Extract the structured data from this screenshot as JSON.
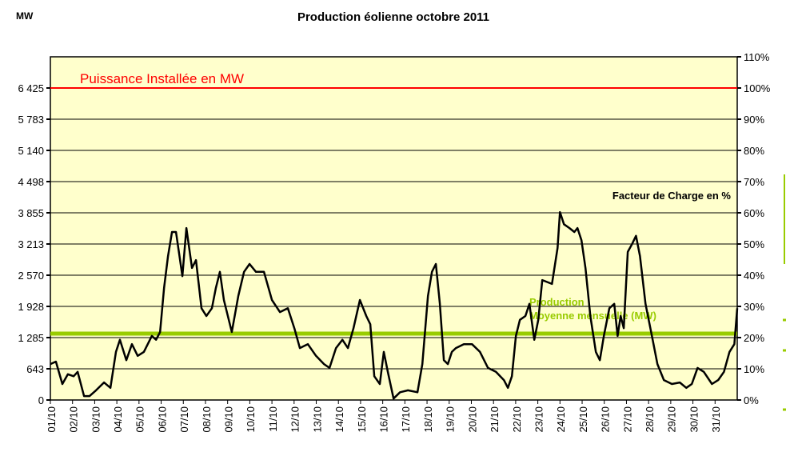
{
  "chart_data": {
    "type": "line",
    "title": "Production éolienne octobre 2011",
    "ylabel_left": "MW",
    "ylabel_right": "Facteur de Charge en %",
    "installed_label": "Puissance Installée en MW",
    "installed_mw": 6425,
    "mean_label_line1": "Production :",
    "mean_label_line2": "Moyenne mensuelle (MW)",
    "mean_mw": 1367,
    "left_ticks": [
      "0",
      "643",
      "1 285",
      "1 928",
      "2 570",
      "3 213",
      "3 855",
      "4 498",
      "5 140",
      "5 783",
      "6 425"
    ],
    "right_ticks": [
      "0%",
      "10%",
      "20%",
      "30%",
      "40%",
      "50%",
      "60%",
      "70%",
      "80%",
      "90%",
      "100%",
      "110%"
    ],
    "ylim_pct": [
      0,
      110
    ],
    "x_labels": [
      "01/10",
      "02/10",
      "03/10",
      "04/10",
      "05/10",
      "06/10",
      "07/10",
      "08/10",
      "09/10",
      "10/10",
      "11/10",
      "12/10",
      "13/10",
      "14/10",
      "15/10",
      "16/10",
      "17/10",
      "18/10",
      "19/10",
      "20/10",
      "21/10",
      "22/10",
      "23/10",
      "24/10",
      "25/10",
      "26/10",
      "27/10",
      "28/10",
      "29/10",
      "30/10",
      "31/10"
    ],
    "series": [
      {
        "name": "Production (MW)",
        "x_days": [
          0,
          0.25,
          0.54,
          0.79,
          1.05,
          1.23,
          1.52,
          1.77,
          2.06,
          2.42,
          2.71,
          2.96,
          3.14,
          3.43,
          3.68,
          3.94,
          4.22,
          4.58,
          4.77,
          4.95,
          5.13,
          5.31,
          5.49,
          5.67,
          5.96,
          6.14,
          6.39,
          6.57,
          6.82,
          7.04,
          7.29,
          7.47,
          7.65,
          7.83,
          8.19,
          8.48,
          8.74,
          8.99,
          9.28,
          9.64,
          10.0,
          10.36,
          10.72,
          11.01,
          11.26,
          11.62,
          11.99,
          12.35,
          12.6,
          12.89,
          13.18,
          13.43,
          13.68,
          13.97,
          14.26,
          14.44,
          14.62,
          14.87,
          15.05,
          15.23,
          15.49,
          15.78,
          16.14,
          16.57,
          16.79,
          17.04,
          17.22,
          17.4,
          17.58,
          17.76,
          17.94,
          18.12,
          18.3,
          18.66,
          19.03,
          19.39,
          19.75,
          20.11,
          20.47,
          20.65,
          20.83,
          21.01,
          21.19,
          21.44,
          21.62,
          21.84,
          22.02,
          22.2,
          22.64,
          22.89,
          23.0,
          23.18,
          23.43,
          23.65,
          23.79,
          23.97,
          24.15,
          24.37,
          24.62,
          24.8,
          24.98,
          25.23,
          25.45,
          25.6,
          25.74,
          25.88,
          26.06,
          26.25,
          26.43,
          26.61,
          26.86,
          27.15,
          27.4,
          27.69,
          28.05,
          28.41,
          28.7,
          28.95,
          29.21,
          29.49,
          29.86,
          30.14,
          30.4,
          30.65,
          30.87,
          31.0
        ],
        "mw": [
          740,
          790,
          330,
          530,
          490,
          580,
          80,
          80,
          200,
          360,
          250,
          990,
          1240,
          820,
          1150,
          910,
          990,
          1320,
          1240,
          1400,
          2310,
          2960,
          3460,
          3460,
          2550,
          3540,
          2720,
          2880,
          1890,
          1730,
          1890,
          2310,
          2640,
          2060,
          1400,
          2140,
          2640,
          2800,
          2640,
          2640,
          2060,
          1810,
          1890,
          1480,
          1070,
          1150,
          910,
          740,
          660,
          1070,
          1240,
          1070,
          1480,
          2060,
          1730,
          1560,
          490,
          330,
          990,
          580,
          30,
          160,
          200,
          160,
          740,
          2140,
          2640,
          2800,
          1980,
          820,
          740,
          990,
          1070,
          1150,
          1150,
          990,
          660,
          580,
          410,
          250,
          490,
          1320,
          1650,
          1730,
          1980,
          1240,
          1650,
          2470,
          2390,
          3130,
          3870,
          3620,
          3540,
          3460,
          3540,
          3290,
          2720,
          1730,
          990,
          820,
          1320,
          1890,
          1980,
          1320,
          1730,
          1480,
          3050,
          3210,
          3380,
          2960,
          1980,
          1320,
          740,
          410,
          330,
          360,
          250,
          330,
          660,
          580,
          330,
          410,
          580,
          990,
          1150,
          1890
        ]
      }
    ],
    "colors": {
      "plot_bg": "#ffffcc",
      "installed": "#ff0000",
      "mean": "#99cc00",
      "line": "#000000"
    }
  }
}
